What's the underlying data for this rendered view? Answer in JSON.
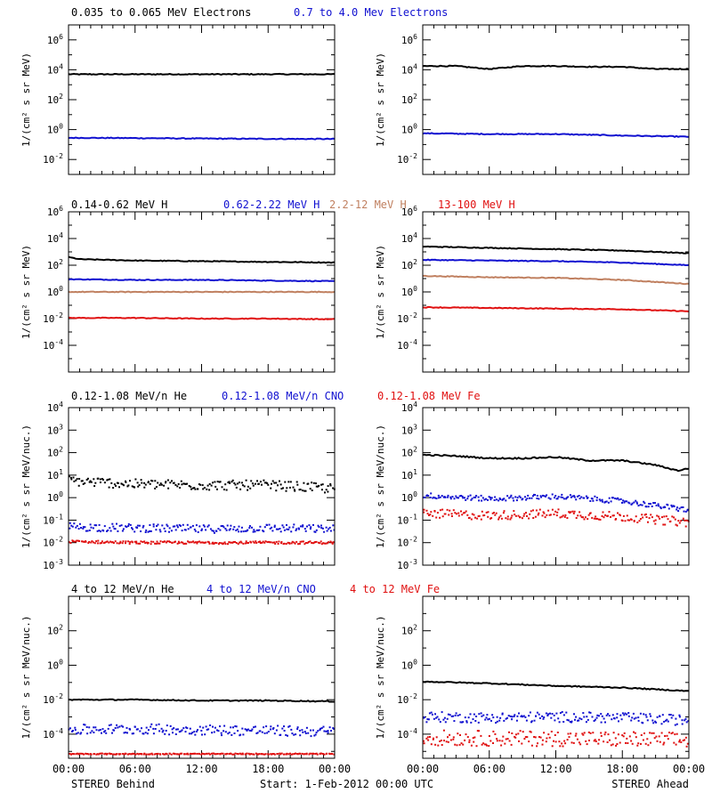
{
  "chart_data": {
    "type": "scatter",
    "x_ticks": [
      "00:00",
      "06:00",
      "12:00",
      "18:00",
      "00:00"
    ],
    "x_range_hours": [
      0,
      24
    ],
    "footer": {
      "left": "STEREO Behind",
      "center": "Start:  1-Feb-2012 00:00 UTC",
      "right": "STEREO Ahead"
    },
    "y_scale": "log",
    "colors": {
      "black": "#000000",
      "blue": "#1010d0",
      "tan": "#c08060",
      "red": "#e01010"
    },
    "rows": [
      {
        "title_items": [
          {
            "text": "0.035 to 0.065 MeV Electrons",
            "color": "#000000"
          },
          {
            "text": "0.7 to 4.0 Mev Electrons",
            "color": "#1010d0"
          }
        ],
        "ylabel": "1/(cm² s sr MeV)",
        "ylim_exp": [
          -3,
          7
        ],
        "tick_exps": [
          -2,
          0,
          2,
          4,
          6
        ],
        "panels": [
          {
            "name": "behind",
            "series": [
              {
                "name": "0.035 to 0.065 MeV Electrons",
                "color": "#000000",
                "style": "line",
                "hours": [
                  0,
                  6,
                  12,
                  18,
                  22.3,
                  22.8,
                  24
                ],
                "log10": [
                  3.7,
                  3.7,
                  3.7,
                  3.7,
                  3.7,
                  3.7,
                  3.7
                ]
              },
              {
                "name": "0.7 to 4.0 Mev Electrons",
                "color": "#1010d0",
                "style": "line",
                "hours": [
                  0,
                  6,
                  12,
                  18,
                  24
                ],
                "log10": [
                  -0.55,
                  -0.57,
                  -0.6,
                  -0.62,
                  -0.63
                ]
              }
            ]
          },
          {
            "name": "ahead",
            "series": [
              {
                "name": "0.035 to 0.065 MeV Electrons",
                "color": "#000000",
                "style": "line",
                "hours": [
                  0,
                  3,
                  6,
                  9,
                  12,
                  15,
                  18,
                  21,
                  24
                ],
                "log10": [
                  4.25,
                  4.25,
                  4.05,
                  4.25,
                  4.25,
                  4.2,
                  4.2,
                  4.05,
                  4.05
                ]
              },
              {
                "name": "0.7 to 4.0 Mev Electrons",
                "color": "#1010d0",
                "style": "line",
                "hours": [
                  0,
                  6,
                  12,
                  18,
                  24
                ],
                "log10": [
                  -0.25,
                  -0.3,
                  -0.3,
                  -0.4,
                  -0.48
                ]
              }
            ]
          }
        ]
      },
      {
        "title_items": [
          {
            "text": "0.14-0.62 MeV H",
            "color": "#000000"
          },
          {
            "text": "0.62-2.22 MeV H",
            "color": "#1010d0"
          },
          {
            "text": "2.2-12 MeV H",
            "color": "#c08060"
          },
          {
            "text": "13-100 MeV H",
            "color": "#e01010"
          }
        ],
        "ylabel": "1/(cm² s sr MeV)",
        "ylim_exp": [
          -6,
          6
        ],
        "tick_exps": [
          -4,
          -2,
          0,
          2,
          4,
          6
        ],
        "panels": [
          {
            "name": "behind",
            "series": [
              {
                "name": "0.14-0.62 MeV H",
                "color": "#000000",
                "style": "line",
                "hours": [
                  0,
                  1,
                  6,
                  12,
                  18,
                  24
                ],
                "log10": [
                  2.6,
                  2.45,
                  2.35,
                  2.3,
                  2.25,
                  2.2
                ]
              },
              {
                "name": "0.62-2.22 MeV H",
                "color": "#1010d0",
                "style": "line",
                "hours": [
                  0,
                  6,
                  12,
                  18,
                  24
                ],
                "log10": [
                  0.95,
                  0.9,
                  0.9,
                  0.85,
                  0.8
                ]
              },
              {
                "name": "2.2-12 MeV H",
                "color": "#c08060",
                "style": "line",
                "hours": [
                  0,
                  6,
                  12,
                  18,
                  24
                ],
                "log10": [
                  0.0,
                  0.0,
                  0.0,
                  0.0,
                  0.0
                ]
              },
              {
                "name": "13-100 MeV H",
                "color": "#e01010",
                "style": "line",
                "hours": [
                  0,
                  6,
                  12,
                  18,
                  24
                ],
                "log10": [
                  -1.95,
                  -1.95,
                  -2.0,
                  -2.0,
                  -2.05
                ]
              }
            ]
          },
          {
            "name": "ahead",
            "series": [
              {
                "name": "0.14-0.62 MeV H",
                "color": "#000000",
                "style": "line",
                "hours": [
                  0,
                  6,
                  12,
                  18,
                  24
                ],
                "log10": [
                  3.4,
                  3.3,
                  3.2,
                  3.1,
                  2.9
                ]
              },
              {
                "name": "0.62-2.22 MeV H",
                "color": "#1010d0",
                "style": "line",
                "hours": [
                  0,
                  6,
                  12,
                  18,
                  24
                ],
                "log10": [
                  2.4,
                  2.35,
                  2.3,
                  2.2,
                  2.0
                ]
              },
              {
                "name": "2.2-12 MeV H",
                "color": "#c08060",
                "style": "line",
                "hours": [
                  0,
                  6,
                  12,
                  18,
                  24
                ],
                "log10": [
                  1.2,
                  1.1,
                  1.05,
                  0.9,
                  0.6
                ]
              },
              {
                "name": "13-100 MeV H",
                "color": "#e01010",
                "style": "line",
                "hours": [
                  0,
                  6,
                  12,
                  18,
                  24
                ],
                "log10": [
                  -1.15,
                  -1.2,
                  -1.25,
                  -1.3,
                  -1.45
                ]
              }
            ]
          }
        ]
      },
      {
        "title_items": [
          {
            "text": "0.12-1.08 MeV/n He",
            "color": "#000000"
          },
          {
            "text": "0.12-1.08 MeV/n CNO",
            "color": "#1010d0"
          },
          {
            "text": "0.12-1.08 MeV Fe",
            "color": "#e01010"
          }
        ],
        "ylabel": "1/(cm² s sr MeV/nuc.)",
        "ylim_exp": [
          -3,
          4
        ],
        "tick_exps": [
          -3,
          -2,
          -1,
          0,
          1,
          2,
          3,
          4
        ],
        "panels": [
          {
            "name": "behind",
            "series": [
              {
                "name": "0.12-1.08 MeV/n He",
                "color": "#000000",
                "style": "dots",
                "hours": [
                  0,
                  6,
                  12,
                  18,
                  24
                ],
                "log10": [
                  0.75,
                  0.6,
                  0.55,
                  0.55,
                  0.4
                ],
                "spread": 0.22
              },
              {
                "name": "0.12-1.08 MeV/n CNO",
                "color": "#1010d0",
                "style": "dots",
                "hours": [
                  0,
                  6,
                  12,
                  18,
                  24
                ],
                "log10": [
                  -1.3,
                  -1.35,
                  -1.4,
                  -1.35,
                  -1.4
                ],
                "spread": 0.18
              },
              {
                "name": "0.12-1.08 MeV Fe",
                "color": "#e01010",
                "style": "dots",
                "hours": [
                  0,
                  6,
                  12,
                  18,
                  24
                ],
                "log10": [
                  -1.95,
                  -2.0,
                  -2.0,
                  -2.0,
                  -2.0
                ],
                "spread": 0.06
              }
            ]
          },
          {
            "name": "ahead",
            "series": [
              {
                "name": "0.12-1.08 MeV/n He",
                "color": "#000000",
                "style": "line",
                "hours": [
                  0,
                  3,
                  6,
                  9,
                  12,
                  15,
                  18,
                  21,
                  23,
                  24
                ],
                "log10": [
                  1.9,
                  1.85,
                  1.75,
                  1.75,
                  1.8,
                  1.65,
                  1.65,
                  1.45,
                  1.2,
                  1.3
                ]
              },
              {
                "name": "0.12-1.08 MeV/n CNO",
                "color": "#1010d0",
                "style": "dots",
                "hours": [
                  0,
                  6,
                  12,
                  18,
                  24
                ],
                "log10": [
                  0.1,
                  -0.05,
                  0.05,
                  -0.15,
                  -0.55
                ],
                "spread": 0.12
              },
              {
                "name": "0.12-1.08 MeV Fe",
                "color": "#e01010",
                "style": "dots",
                "hours": [
                  0,
                  6,
                  12,
                  18,
                  24
                ],
                "log10": [
                  -0.7,
                  -0.8,
                  -0.7,
                  -0.85,
                  -1.1
                ],
                "spread": 0.2
              }
            ]
          }
        ]
      },
      {
        "title_items": [
          {
            "text": "4 to 12 MeV/n He",
            "color": "#000000"
          },
          {
            "text": "4 to 12 MeV/n CNO",
            "color": "#1010d0"
          },
          {
            "text": "4 to 12 MeV Fe",
            "color": "#e01010"
          }
        ],
        "ylabel": "1/(cm² s sr MeV/nuc.)",
        "ylim_exp": [
          -5.4,
          4
        ],
        "tick_exps": [
          -4,
          -2,
          0,
          2
        ],
        "panels": [
          {
            "name": "behind",
            "series": [
              {
                "name": "4 to 12 MeV/n He",
                "color": "#000000",
                "style": "line",
                "hours": [
                  0,
                  6,
                  12,
                  18,
                  24
                ],
                "log10": [
                  -2.0,
                  -2.0,
                  -2.05,
                  -2.05,
                  -2.1
                ]
              },
              {
                "name": "4 to 12 MeV/n CNO",
                "color": "#1010d0",
                "style": "dots",
                "hours": [
                  0,
                  6,
                  12,
                  18,
                  24
                ],
                "log10": [
                  -3.75,
                  -3.7,
                  -3.75,
                  -3.8,
                  -3.85
                ],
                "spread": 0.3
              },
              {
                "name": "4 to 12 MeV Fe",
                "color": "#e01010",
                "style": "dots",
                "hours": [
                  0,
                  6,
                  12,
                  18,
                  24
                ],
                "log10": [
                  -5.15,
                  -5.15,
                  -5.15,
                  -5.15,
                  -5.15
                ],
                "spread": 0.03
              }
            ]
          },
          {
            "name": "ahead",
            "series": [
              {
                "name": "4 to 12 MeV/n He",
                "color": "#000000",
                "style": "line",
                "hours": [
                  0,
                  6,
                  12,
                  18,
                  24
                ],
                "log10": [
                  -0.95,
                  -1.05,
                  -1.2,
                  -1.3,
                  -1.5
                ]
              },
              {
                "name": "4 to 12 MeV/n CNO",
                "color": "#1010d0",
                "style": "dots",
                "hours": [
                  0,
                  6,
                  12,
                  18,
                  24
                ],
                "log10": [
                  -3.0,
                  -3.05,
                  -3.0,
                  -3.05,
                  -3.2
                ],
                "spread": 0.3
              },
              {
                "name": "4 to 12 MeV Fe",
                "color": "#e01010",
                "style": "dots",
                "hours": [
                  0,
                  6,
                  12,
                  18,
                  24
                ],
                "log10": [
                  -4.2,
                  -4.25,
                  -4.25,
                  -4.3,
                  -4.35
                ],
                "spread": 0.45
              }
            ]
          }
        ]
      }
    ]
  }
}
